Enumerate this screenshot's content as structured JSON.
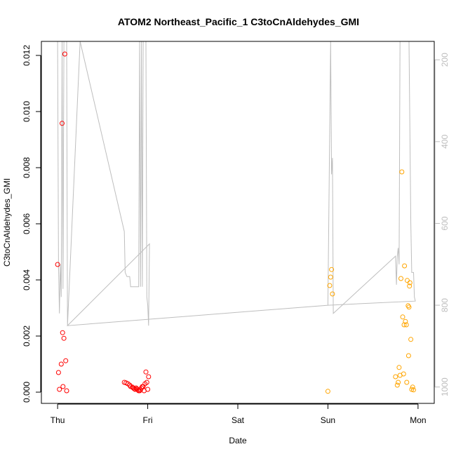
{
  "chart_data": {
    "type": "scatter",
    "title": "ATOM2 Northeast_Pacific_1 C3toCnAldehydes_GMI",
    "xlabel": "Date",
    "ylabel": "C3toCnAldehydes_GMI",
    "x_unit": "days since Thu 00:00",
    "xlim": [
      -0.18,
      4.18
    ],
    "ylim": [
      -0.0004,
      0.0125
    ],
    "x_ticks": [
      {
        "value": 0,
        "label": "Thu"
      },
      {
        "value": 1,
        "label": "Fri"
      },
      {
        "value": 2,
        "label": "Sat"
      },
      {
        "value": 3,
        "label": "Sun"
      },
      {
        "value": 4,
        "label": "Mon"
      }
    ],
    "y_ticks": [
      {
        "value": 0.0,
        "label": "0.000"
      },
      {
        "value": 0.002,
        "label": "0.002"
      },
      {
        "value": 0.004,
        "label": "0.004"
      },
      {
        "value": 0.006,
        "label": "0.006"
      },
      {
        "value": 0.008,
        "label": "0.008"
      },
      {
        "value": 0.01,
        "label": "0.010"
      },
      {
        "value": 0.012,
        "label": "0.012"
      }
    ],
    "y2_ticks": [
      {
        "value": 200,
        "label": "200"
      },
      {
        "value": 400,
        "label": "400"
      },
      {
        "value": 600,
        "label": "600"
      },
      {
        "value": 800,
        "label": "800"
      },
      {
        "value": 1000,
        "label": "1000"
      }
    ],
    "y2lim": [
      1040,
      155
    ],
    "series": [
      {
        "color": "#ff0000",
        "points": [
          [
            0.0,
            0.00455
          ],
          [
            0.01,
            0.0007
          ],
          [
            0.02,
            0.0001
          ],
          [
            0.04,
            0.001
          ],
          [
            0.05,
            0.00958
          ],
          [
            0.055,
            0.00212
          ],
          [
            0.06,
            0.0002
          ],
          [
            0.07,
            0.00192
          ],
          [
            0.08,
            0.01205
          ],
          [
            0.09,
            0.00112
          ],
          [
            0.1,
            5e-05
          ],
          [
            0.74,
            0.00035
          ],
          [
            0.76,
            0.00033
          ],
          [
            0.78,
            0.0003
          ],
          [
            0.8,
            0.00025
          ],
          [
            0.81,
            0.0002
          ],
          [
            0.83,
            0.00018
          ],
          [
            0.84,
            0.00015
          ],
          [
            0.85,
            0.00012
          ],
          [
            0.86,
            0.0001
          ],
          [
            0.87,
            0.00015
          ],
          [
            0.88,
            0.00012
          ],
          [
            0.89,
            8e-05
          ],
          [
            0.9,
            5e-05
          ],
          [
            0.91,
            5e-05
          ],
          [
            0.92,
            8e-05
          ],
          [
            0.93,
            0.00015
          ],
          [
            0.94,
            0.0002
          ],
          [
            0.95,
            0.0002
          ],
          [
            0.96,
            5e-05
          ],
          [
            0.97,
            0.0003
          ],
          [
            0.98,
            0.00072
          ],
          [
            0.99,
            0.00035
          ],
          [
            1.0,
            0.0001
          ],
          [
            1.01,
            0.00055
          ]
        ]
      },
      {
        "color": "#ffa500",
        "points": [
          [
            3.0,
            3e-05
          ],
          [
            3.02,
            0.0038
          ],
          [
            3.03,
            0.0041
          ],
          [
            3.04,
            0.00437
          ],
          [
            3.05,
            0.0035
          ],
          [
            3.75,
            0.00055
          ],
          [
            3.77,
            0.00025
          ],
          [
            3.78,
            0.00035
          ],
          [
            3.79,
            0.00088
          ],
          [
            3.8,
            0.0006
          ],
          [
            3.81,
            0.00405
          ],
          [
            3.82,
            0.00785
          ],
          [
            3.83,
            0.00268
          ],
          [
            3.84,
            0.00065
          ],
          [
            3.845,
            0.0024
          ],
          [
            3.85,
            0.0045
          ],
          [
            3.86,
            0.00252
          ],
          [
            3.87,
            0.0024
          ],
          [
            3.875,
            0.00035
          ],
          [
            3.88,
            0.00398
          ],
          [
            3.89,
            0.00308
          ],
          [
            3.895,
            0.0013
          ],
          [
            3.9,
            0.00303
          ],
          [
            3.905,
            0.00378
          ],
          [
            3.91,
            0.0039
          ],
          [
            3.92,
            0.00188
          ],
          [
            3.93,
            0.0001
          ],
          [
            3.94,
            0.00018
          ],
          [
            3.95,
            8e-05
          ]
        ]
      }
    ],
    "pressure_line": {
      "color": "#bebebe",
      "points": [
        [
          0.0,
          150
        ],
        [
          0.01,
          700
        ],
        [
          0.02,
          820
        ],
        [
          0.03,
          700
        ],
        [
          0.04,
          780
        ],
        [
          0.05,
          150
        ],
        [
          0.06,
          760
        ],
        [
          0.07,
          150
        ],
        [
          0.08,
          150
        ],
        [
          0.09,
          150
        ],
        [
          0.1,
          150
        ],
        [
          0.11,
          850
        ],
        [
          0.25,
          150
        ],
        [
          0.74,
          620
        ],
        [
          0.75,
          720
        ],
        [
          0.77,
          730
        ],
        [
          0.8,
          730
        ],
        [
          0.81,
          755
        ],
        [
          0.82,
          755
        ],
        [
          0.84,
          755
        ],
        [
          0.86,
          755
        ],
        [
          0.88,
          755
        ],
        [
          0.9,
          755
        ],
        [
          0.91,
          150
        ],
        [
          0.92,
          755
        ],
        [
          0.93,
          150
        ],
        [
          0.94,
          755
        ],
        [
          0.95,
          150
        ],
        [
          0.96,
          150
        ],
        [
          0.98,
          150
        ],
        [
          0.99,
          780
        ],
        [
          1.0,
          800
        ],
        [
          1.01,
          850
        ],
        [
          1.02,
          650
        ],
        [
          0.11,
          850
        ],
        [
          3.0,
          800
        ],
        [
          3.03,
          150
        ],
        [
          3.04,
          480
        ],
        [
          3.045,
          460
        ],
        [
          3.05,
          440
        ],
        [
          3.06,
          820
        ],
        [
          3.75,
          680
        ],
        [
          3.76,
          750
        ],
        [
          3.77,
          680
        ],
        [
          3.78,
          660
        ],
        [
          3.79,
          700
        ],
        [
          3.8,
          150
        ],
        [
          3.81,
          150
        ],
        [
          3.82,
          150
        ],
        [
          3.83,
          150
        ],
        [
          3.84,
          150
        ],
        [
          3.85,
          150
        ],
        [
          3.86,
          150
        ],
        [
          3.87,
          150
        ],
        [
          3.88,
          150
        ],
        [
          3.89,
          150
        ],
        [
          3.9,
          150
        ],
        [
          3.92,
          600
        ],
        [
          3.93,
          720
        ],
        [
          3.95,
          720
        ],
        [
          3.96,
          780
        ],
        [
          3.97,
          790
        ],
        [
          3.0,
          800
        ]
      ]
    },
    "legend": "none",
    "grid": false
  }
}
